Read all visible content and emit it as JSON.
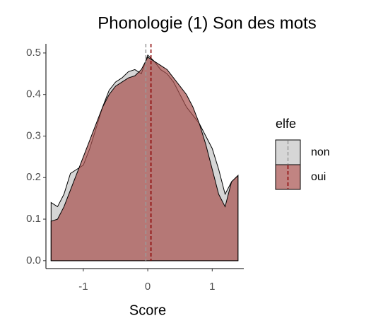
{
  "chart_data": {
    "type": "density",
    "title": "Phonologie (1) Son des mots",
    "xlabel": "Score",
    "legend_title": "elfe",
    "x": [
      -1.5,
      -1.4,
      -1.3,
      -1.2,
      -1.1,
      -1.0,
      -0.9,
      -0.8,
      -0.7,
      -0.6,
      -0.5,
      -0.4,
      -0.3,
      -0.2,
      -0.1,
      0,
      0.1,
      0.2,
      0.3,
      0.4,
      0.5,
      0.6,
      0.7,
      0.8,
      0.9,
      1.0,
      1.1,
      1.2,
      1.3,
      1.4
    ],
    "series": [
      {
        "name": "non",
        "color": "#c4c4c4",
        "line_color": "#9a9a9a",
        "mean": -0.03,
        "values": [
          0.14,
          0.13,
          0.16,
          0.21,
          0.22,
          0.23,
          0.27,
          0.32,
          0.37,
          0.41,
          0.43,
          0.44,
          0.455,
          0.46,
          0.45,
          0.495,
          0.48,
          0.46,
          0.45,
          0.43,
          0.4,
          0.37,
          0.35,
          0.33,
          0.3,
          0.27,
          0.22,
          0.16,
          0.19,
          0.205
        ]
      },
      {
        "name": "oui",
        "color": "#a6504d",
        "line_color": "#8b0000",
        "mean": 0.05,
        "values": [
          0.095,
          0.1,
          0.13,
          0.17,
          0.21,
          0.25,
          0.29,
          0.33,
          0.37,
          0.4,
          0.42,
          0.43,
          0.44,
          0.445,
          0.46,
          0.49,
          0.48,
          0.47,
          0.46,
          0.44,
          0.42,
          0.4,
          0.37,
          0.33,
          0.28,
          0.22,
          0.16,
          0.13,
          0.19,
          0.205
        ]
      }
    ],
    "xlim": [
      -1.58,
      1.49
    ],
    "ylim": [
      -0.019,
      0.522
    ],
    "xticks": [
      -1,
      0,
      1
    ],
    "yticks": [
      {
        "value": 0,
        "label": "0.0"
      },
      0.1,
      0.2,
      0.3,
      0.4,
      0.5
    ]
  }
}
